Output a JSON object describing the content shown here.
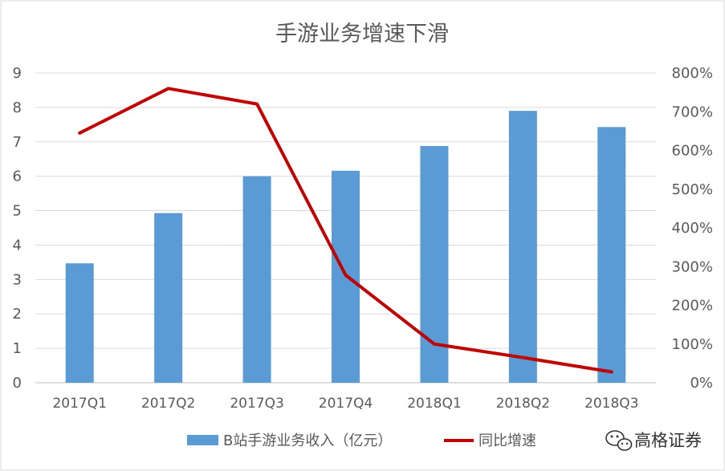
{
  "chart_data": {
    "type": "bar",
    "title": "手游业务增速下滑",
    "categories": [
      "2017Q1",
      "2017Q2",
      "2017Q3",
      "2017Q4",
      "2018Q1",
      "2018Q2",
      "2018Q3"
    ],
    "series": [
      {
        "name": "B站手游业务收入（亿元）",
        "type": "bar",
        "axis": "left",
        "color": "#5B9BD5",
        "values": [
          3.47,
          4.93,
          6.0,
          6.16,
          6.88,
          7.9,
          7.43
        ]
      },
      {
        "name": "同比增速",
        "type": "line",
        "axis": "right",
        "color": "#C00000",
        "values": [
          6.45,
          7.6,
          7.2,
          2.78,
          1.0,
          0.65,
          0.28
        ]
      }
    ],
    "y_left": {
      "ylim": [
        0,
        9
      ],
      "ticks": [
        "0",
        "1",
        "2",
        "3",
        "4",
        "5",
        "6",
        "7",
        "8",
        "9"
      ]
    },
    "y_right": {
      "ylim": [
        0,
        8
      ],
      "ticks": [
        "0%",
        "100%",
        "200%",
        "300%",
        "400%",
        "500%",
        "600%",
        "700%",
        "800%"
      ]
    },
    "grid": true,
    "legend_position": "bottom"
  },
  "watermark": {
    "text": "高格证券",
    "icon": "wechat-icon"
  }
}
